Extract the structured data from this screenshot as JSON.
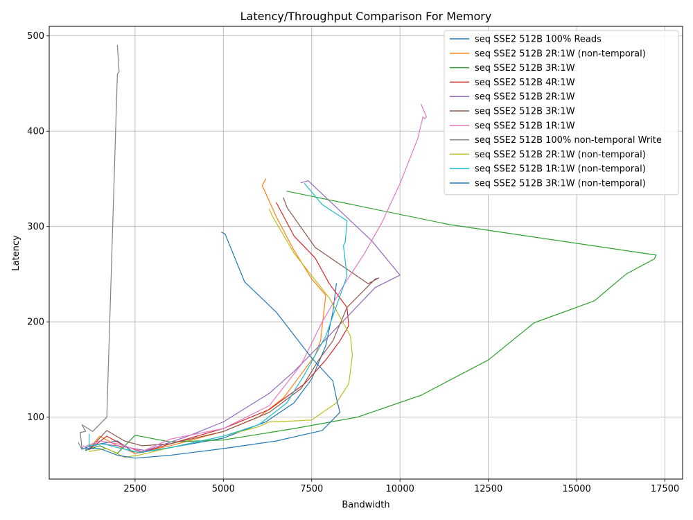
{
  "chart_data": {
    "type": "line",
    "title": "Latency/Throughput Comparison For Memory",
    "xlabel": "Bandwidth",
    "ylabel": "Latency",
    "xlim": [
      70,
      18000
    ],
    "ylim": [
      35,
      510
    ],
    "xticks": [
      2500,
      5000,
      7500,
      10000,
      12500,
      15000,
      17500
    ],
    "xtick_labels": [
      "2500",
      "5000",
      "7500",
      "10000",
      "12500",
      "15000",
      "17500"
    ],
    "yticks": [
      100,
      200,
      300,
      400,
      500
    ],
    "ytick_labels": [
      "100",
      "200",
      "300",
      "400",
      "500"
    ],
    "grid": true,
    "legend_position": "top-right",
    "series": [
      {
        "name": "seq SSE2 512B 100% Reads",
        "color": "#1f77b4",
        "x": [
          1100,
          1500,
          2000,
          2500,
          3500,
          5000,
          6200,
          7000,
          7500,
          7900,
          8100,
          8200
        ],
        "y": [
          68,
          72,
          75,
          62,
          68,
          78,
          95,
          115,
          140,
          175,
          210,
          240
        ]
      },
      {
        "name": "seq SSE2 512B 2R:1W (non-temporal)",
        "color": "#ff7f0e",
        "x": [
          1200,
          1500,
          2000,
          2500,
          3500,
          5000,
          6000,
          6700,
          7200,
          7600,
          7750,
          7900,
          7500,
          7000,
          6500,
          6100,
          6200
        ],
        "y": [
          67,
          80,
          70,
          62,
          70,
          85,
          100,
          120,
          145,
          165,
          180,
          228,
          245,
          275,
          310,
          343,
          350
        ]
      },
      {
        "name": "seq SSE2 512B 3R:1W",
        "color": "#2ca02c",
        "x": [
          1100,
          1500,
          2000,
          2500,
          3500,
          5000,
          7000,
          8800,
          10600,
          12500,
          13800,
          15500,
          16400,
          17200,
          17250,
          11400,
          6800
        ],
        "y": [
          65,
          70,
          62,
          81,
          74,
          76,
          88,
          100,
          123,
          160,
          199,
          222,
          250,
          266,
          270,
          302,
          337
        ]
      },
      {
        "name": "seq SSE2 512B 4R:1W",
        "color": "#d62728",
        "x": [
          1200,
          1700,
          2200,
          2700,
          3500,
          5000,
          6300,
          7300,
          7900,
          8300,
          8550,
          8500,
          8000,
          7600,
          7000,
          6500
        ],
        "y": [
          66,
          80,
          70,
          63,
          72,
          88,
          108,
          135,
          160,
          180,
          196,
          215,
          240,
          267,
          290,
          325
        ]
      },
      {
        "name": "seq SSE2 512B 2R:1W",
        "color": "#9467bd",
        "x": [
          1100,
          1500,
          2000,
          2800,
          4000,
          5000,
          6300,
          7000,
          7800,
          8500,
          9300,
          10000,
          9200,
          7400,
          7200
        ],
        "y": [
          66,
          72,
          70,
          65,
          80,
          95,
          125,
          148,
          178,
          205,
          236,
          249,
          285,
          348,
          346
        ]
      },
      {
        "name": "seq SSE2 512B 3R:1W",
        "color": "#8c564b",
        "x": [
          1200,
          1700,
          2200,
          2700,
          3500,
          5000,
          6300,
          7200,
          7700,
          8100,
          8500,
          9300,
          9400,
          9100,
          7600,
          6800,
          6700
        ],
        "y": [
          66,
          86,
          75,
          70,
          72,
          85,
          105,
          130,
          160,
          180,
          215,
          245,
          246,
          240,
          278,
          320,
          330
        ]
      },
      {
        "name": "seq SSE2 512B 1R:1W",
        "color": "#e377c2",
        "x": [
          1000,
          1500,
          2000,
          2700,
          3500,
          5000,
          6300,
          7200,
          7800,
          8400,
          9000,
          9500,
          10000,
          10500,
          10650,
          10700,
          10750,
          10600
        ],
        "y": [
          68,
          75,
          72,
          64,
          77,
          88,
          112,
          155,
          200,
          238,
          272,
          305,
          345,
          392,
          415,
          413,
          415,
          428
        ]
      },
      {
        "name": "seq SSE2 512B 100% non-temporal Write",
        "color": "#7f7f7f",
        "x": [
          900,
          1000,
          950,
          1100,
          1000,
          1300,
          1700,
          2000,
          2050,
          2000
        ],
        "y": [
          73,
          66,
          84,
          85,
          92,
          85,
          100,
          460,
          462,
          490
        ]
      },
      {
        "name": "seq SSE2 512B 2R:1W (non-temporal)",
        "color": "#bcbd22",
        "x": [
          1200,
          1700,
          2200,
          2600,
          3500,
          5000,
          6000,
          6300,
          7000,
          7500,
          8200,
          8550,
          8650,
          8600,
          8000,
          7000,
          6400,
          6300
        ],
        "y": [
          64,
          67,
          58,
          60,
          68,
          80,
          90,
          95,
          96,
          97,
          115,
          135,
          165,
          185,
          225,
          272,
          310,
          318
        ]
      },
      {
        "name": "seq SSE2 512B 1R:1W (non-temporal)",
        "color": "#17becf",
        "x": [
          1200,
          1200,
          1600,
          2000,
          2600,
          3500,
          5000,
          6000,
          6800,
          7300,
          7900,
          8500,
          8400,
          8450,
          8500,
          7800,
          7300
        ],
        "y": [
          82,
          70,
          72,
          68,
          63,
          68,
          80,
          92,
          115,
          145,
          185,
          248,
          280,
          284,
          306,
          323,
          345
        ]
      },
      {
        "name": "seq SSE2 512B 3R:1W (non-temporal)",
        "color": "#1f77b4",
        "x": [
          1000,
          1500,
          2000,
          2500,
          3500,
          5000,
          6500,
          7800,
          8300,
          8200,
          8100,
          7500,
          6500,
          5600,
          5050,
          4950
        ],
        "y": [
          67,
          67,
          60,
          57,
          60,
          67,
          75,
          86,
          105,
          120,
          138,
          162,
          210,
          242,
          292,
          294
        ]
      }
    ]
  }
}
